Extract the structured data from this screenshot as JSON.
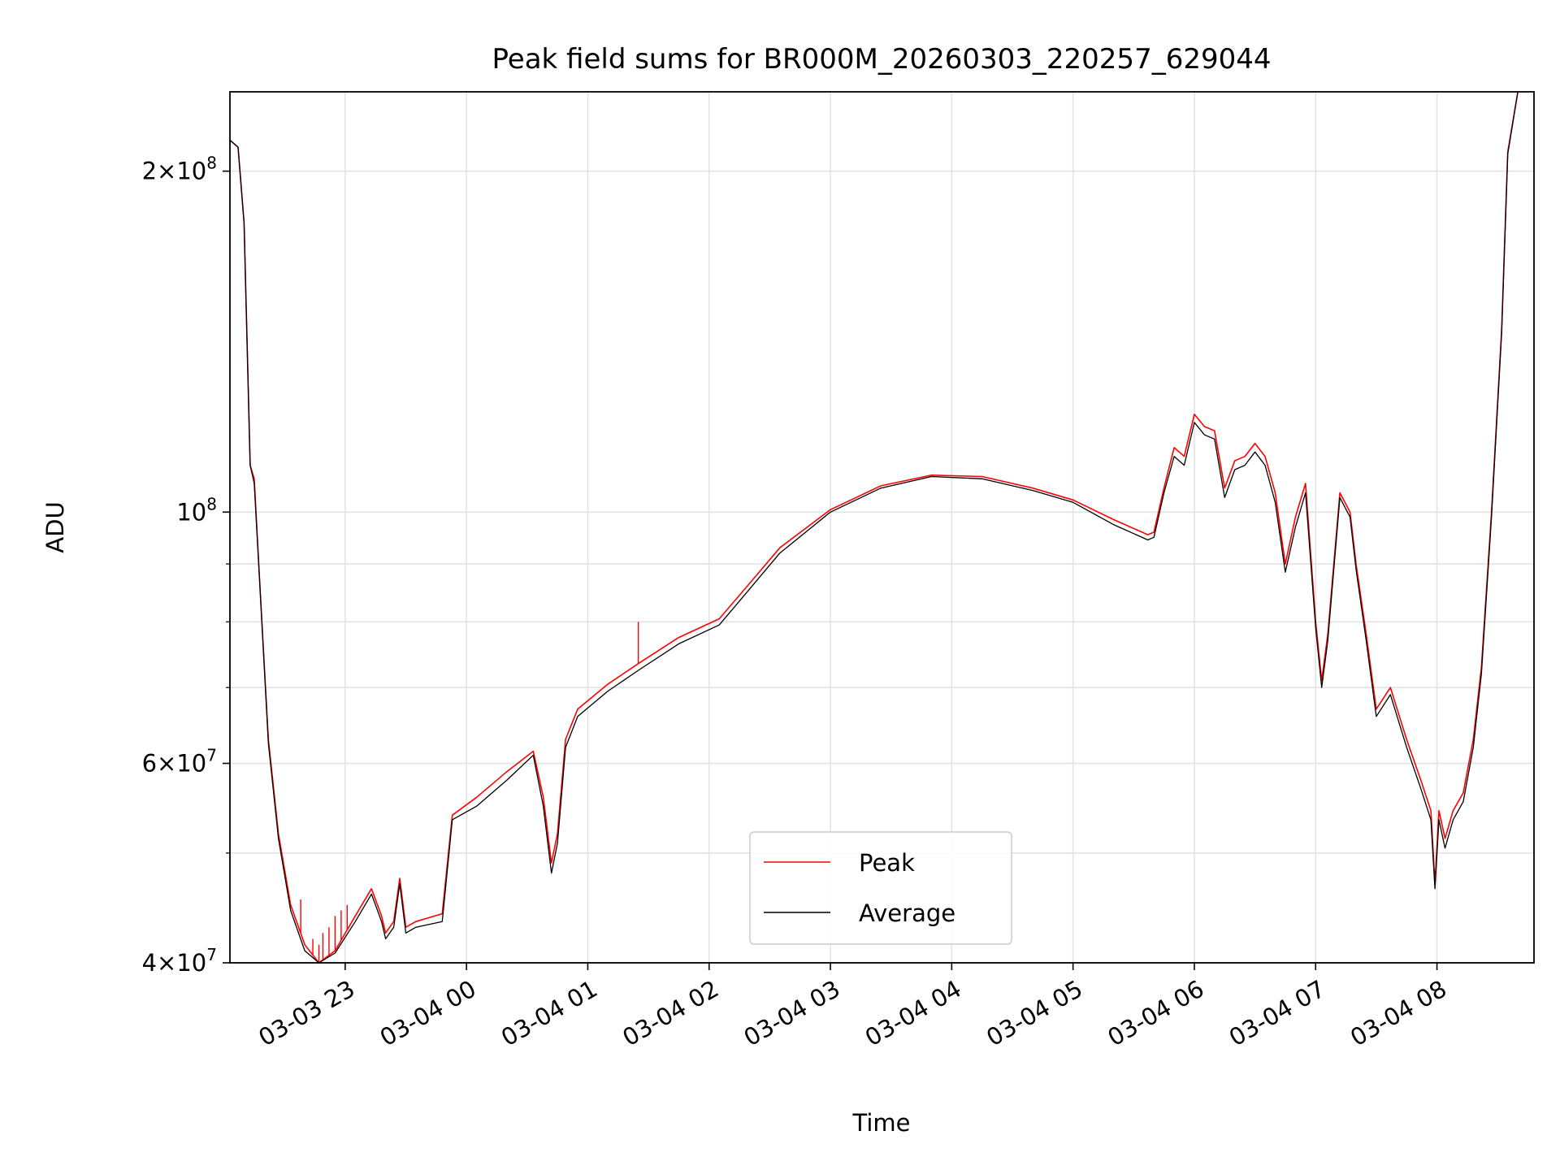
{
  "chart_data": {
    "type": "line",
    "title": "Peak field sums for BR000M_20260303_220257_629044",
    "xlabel": "Time",
    "ylabel": "ADU",
    "yscale": "log",
    "ylim": [
      40000000,
      235000000
    ],
    "xlim": [
      "2026-03-03 22:03",
      "2026-03-04 08:48"
    ],
    "grid": true,
    "legend_position": "bottom-center",
    "x_ticks": [
      {
        "t": "2026-03-03 23:00",
        "label": "03-03 23"
      },
      {
        "t": "2026-03-04 00:00",
        "label": "03-04 00"
      },
      {
        "t": "2026-03-04 01:00",
        "label": "03-04 01"
      },
      {
        "t": "2026-03-04 02:00",
        "label": "03-04 02"
      },
      {
        "t": "2026-03-04 03:00",
        "label": "03-04 03"
      },
      {
        "t": "2026-03-04 04:00",
        "label": "03-04 04"
      },
      {
        "t": "2026-03-04 05:00",
        "label": "03-04 05"
      },
      {
        "t": "2026-03-04 06:00",
        "label": "03-04 06"
      },
      {
        "t": "2026-03-04 07:00",
        "label": "03-04 07"
      },
      {
        "t": "2026-03-04 08:00",
        "label": "03-04 08"
      }
    ],
    "y_ticks": [
      {
        "value": 40000000,
        "mantissa": "4",
        "base": "10",
        "exp": "7"
      },
      {
        "value": 60000000,
        "mantissa": "6",
        "base": "10",
        "exp": "7"
      },
      {
        "value": 100000000,
        "mantissa": "",
        "base": "10",
        "exp": "8"
      },
      {
        "value": 200000000,
        "mantissa": "2",
        "base": "10",
        "exp": "8"
      }
    ],
    "y_minor_grid": [
      50000000,
      70000000,
      80000000,
      90000000
    ],
    "series": [
      {
        "name": "Peak",
        "color": "#ff0000",
        "points": [
          [
            "2026-03-03 22:03",
            213000000.0
          ],
          [
            "2026-03-03 22:07",
            210000000.0
          ],
          [
            "2026-03-03 22:10",
            180000000.0
          ],
          [
            "2026-03-03 22:13",
            110000000.0
          ],
          [
            "2026-03-03 22:15",
            107000000.0
          ],
          [
            "2026-03-03 22:18",
            85000000.0
          ],
          [
            "2026-03-03 22:22",
            63000000.0
          ],
          [
            "2026-03-03 22:27",
            52000000.0
          ],
          [
            "2026-03-03 22:33",
            45000000.0
          ],
          [
            "2026-03-03 22:40",
            41500000.0
          ],
          [
            "2026-03-03 22:47",
            40000000.0
          ],
          [
            "2026-03-03 22:55",
            41000000.0
          ],
          [
            "2026-03-03 23:05",
            44000000.0
          ],
          [
            "2026-03-03 23:13",
            46500000.0
          ],
          [
            "2026-03-03 23:18",
            44000000.0
          ],
          [
            "2026-03-03 23:20",
            42500000.0
          ],
          [
            "2026-03-03 23:24",
            43500000.0
          ],
          [
            "2026-03-03 23:27",
            47500000.0
          ],
          [
            "2026-03-03 23:30",
            43000000.0
          ],
          [
            "2026-03-03 23:35",
            43500000.0
          ],
          [
            "2026-03-03 23:48",
            44200000.0
          ],
          [
            "2026-03-03 23:53",
            54000000.0
          ],
          [
            "2026-03-04 00:05",
            56000000.0
          ],
          [
            "2026-03-04 00:20",
            59000000.0
          ],
          [
            "2026-03-04 00:33",
            61500000.0
          ],
          [
            "2026-03-04 00:38",
            56000000.0
          ],
          [
            "2026-03-04 00:42",
            49000000.0
          ],
          [
            "2026-03-04 00:45",
            52000000.0
          ],
          [
            "2026-03-04 00:49",
            63000000.0
          ],
          [
            "2026-03-04 00:55",
            67000000.0
          ],
          [
            "2026-03-04 01:10",
            70500000.0
          ],
          [
            "2026-03-04 01:25",
            73500000.0
          ],
          [
            "2026-03-04 01:45",
            77500000.0
          ],
          [
            "2026-03-04 02:05",
            80500000.0
          ],
          [
            "2026-03-04 02:20",
            86500000.0
          ],
          [
            "2026-03-04 02:35",
            93000000.0
          ],
          [
            "2026-03-04 03:00",
            100500000.0
          ],
          [
            "2026-03-04 03:25",
            105500000.0
          ],
          [
            "2026-03-04 03:50",
            107800000.0
          ],
          [
            "2026-03-04 04:15",
            107500000.0
          ],
          [
            "2026-03-04 04:40",
            105000000.0
          ],
          [
            "2026-03-04 05:00",
            102500000.0
          ],
          [
            "2026-03-04 05:20",
            98500000.0
          ],
          [
            "2026-03-04 05:37",
            95500000.0
          ],
          [
            "2026-03-04 05:40",
            96000000.0
          ],
          [
            "2026-03-04 05:45",
            105000000.0
          ],
          [
            "2026-03-04 05:50",
            114000000.0
          ],
          [
            "2026-03-04 05:55",
            112000000.0
          ],
          [
            "2026-03-04 06:00",
            122000000.0
          ],
          [
            "2026-03-04 06:05",
            119000000.0
          ],
          [
            "2026-03-04 06:10",
            118000000.0
          ],
          [
            "2026-03-04 06:15",
            105000000.0
          ],
          [
            "2026-03-04 06:20",
            111000000.0
          ],
          [
            "2026-03-04 06:25",
            112000000.0
          ],
          [
            "2026-03-04 06:30",
            115000000.0
          ],
          [
            "2026-03-04 06:35",
            112000000.0
          ],
          [
            "2026-03-04 06:40",
            104000000.0
          ],
          [
            "2026-03-04 06:45",
            90000000.0
          ],
          [
            "2026-03-04 06:50",
            99000000.0
          ],
          [
            "2026-03-04 06:55",
            106000000.0
          ],
          [
            "2026-03-04 07:00",
            80000000.0
          ],
          [
            "2026-03-04 07:03",
            71000000.0
          ],
          [
            "2026-03-04 07:06",
            78000000.0
          ],
          [
            "2026-03-04 07:12",
            104000000.0
          ],
          [
            "2026-03-04 07:17",
            100000000.0
          ],
          [
            "2026-03-04 07:20",
            90000000.0
          ],
          [
            "2026-03-04 07:25",
            78000000.0
          ],
          [
            "2026-03-04 07:30",
            67000000.0
          ],
          [
            "2026-03-04 07:37",
            70000000.0
          ],
          [
            "2026-03-04 07:45",
            63000000.0
          ],
          [
            "2026-03-04 07:52",
            58000000.0
          ],
          [
            "2026-03-04 07:57",
            54500000.0
          ],
          [
            "2026-03-04 07:59",
            47000000.0
          ],
          [
            "2026-03-04 08:01",
            54500000.0
          ],
          [
            "2026-03-04 08:04",
            51500000.0
          ],
          [
            "2026-03-04 08:08",
            54500000.0
          ],
          [
            "2026-03-04 08:13",
            56500000.0
          ],
          [
            "2026-03-04 08:18",
            63000000.0
          ],
          [
            "2026-03-04 08:22",
            73000000.0
          ],
          [
            "2026-03-04 08:27",
            100000000.0
          ],
          [
            "2026-03-04 08:32",
            145000000.0
          ],
          [
            "2026-03-04 08:35",
            208000000.0
          ],
          [
            "2026-03-04 08:40",
            235000000.0
          ]
        ],
        "spikes": [
          [
            "2026-03-03 22:38",
            45500000.0
          ],
          [
            "2026-03-03 22:44",
            42000000.0
          ],
          [
            "2026-03-03 22:47",
            41500000.0
          ],
          [
            "2026-03-03 22:49",
            42500000.0
          ],
          [
            "2026-03-03 22:52",
            43000000.0
          ],
          [
            "2026-03-03 22:55",
            44000000.0
          ],
          [
            "2026-03-03 22:58",
            44500000.0
          ],
          [
            "2026-03-03 23:01",
            45000000.0
          ],
          [
            "2026-03-04 01:25",
            80000000.0
          ]
        ]
      },
      {
        "name": "Average",
        "color": "#000000",
        "points": [
          [
            "2026-03-03 22:03",
            213000000.0
          ],
          [
            "2026-03-03 22:07",
            210000000.0
          ],
          [
            "2026-03-03 22:10",
            180000000.0
          ],
          [
            "2026-03-03 22:13",
            110000000.0
          ],
          [
            "2026-03-03 22:15",
            106000000.0
          ],
          [
            "2026-03-03 22:18",
            85000000.0
          ],
          [
            "2026-03-03 22:22",
            62500000.0
          ],
          [
            "2026-03-03 22:27",
            51500000.0
          ],
          [
            "2026-03-03 22:33",
            44500000.0
          ],
          [
            "2026-03-03 22:40",
            41000000.0
          ],
          [
            "2026-03-03 22:47",
            40000000.0
          ],
          [
            "2026-03-03 22:55",
            40800000.0
          ],
          [
            "2026-03-03 23:05",
            43500000.0
          ],
          [
            "2026-03-03 23:13",
            46000000.0
          ],
          [
            "2026-03-03 23:18",
            43500000.0
          ],
          [
            "2026-03-03 23:20",
            42000000.0
          ],
          [
            "2026-03-03 23:24",
            43000000.0
          ],
          [
            "2026-03-03 23:27",
            47000000.0
          ],
          [
            "2026-03-03 23:30",
            42500000.0
          ],
          [
            "2026-03-03 23:35",
            43000000.0
          ],
          [
            "2026-03-03 23:48",
            43500000.0
          ],
          [
            "2026-03-03 23:53",
            53500000.0
          ],
          [
            "2026-03-04 00:05",
            55000000.0
          ],
          [
            "2026-03-04 00:20",
            58000000.0
          ],
          [
            "2026-03-04 00:33",
            61000000.0
          ],
          [
            "2026-03-04 00:38",
            55000000.0
          ],
          [
            "2026-03-04 00:42",
            48000000.0
          ],
          [
            "2026-03-04 00:45",
            51000000.0
          ],
          [
            "2026-03-04 00:49",
            62000000.0
          ],
          [
            "2026-03-04 00:55",
            66000000.0
          ],
          [
            "2026-03-04 01:10",
            69500000.0
          ],
          [
            "2026-03-04 01:25",
            72500000.0
          ],
          [
            "2026-03-04 01:45",
            76500000.0
          ],
          [
            "2026-03-04 02:05",
            79500000.0
          ],
          [
            "2026-03-04 02:20",
            85500000.0
          ],
          [
            "2026-03-04 02:35",
            92000000.0
          ],
          [
            "2026-03-04 03:00",
            100000000.0
          ],
          [
            "2026-03-04 03:25",
            105000000.0
          ],
          [
            "2026-03-04 03:50",
            107500000.0
          ],
          [
            "2026-03-04 04:15",
            107000000.0
          ],
          [
            "2026-03-04 04:40",
            104500000.0
          ],
          [
            "2026-03-04 05:00",
            102000000.0
          ],
          [
            "2026-03-04 05:20",
            97500000.0
          ],
          [
            "2026-03-04 05:37",
            94500000.0
          ],
          [
            "2026-03-04 05:40",
            95000000.0
          ],
          [
            "2026-03-04 05:45",
            104000000.0
          ],
          [
            "2026-03-04 05:50",
            112000000.0
          ],
          [
            "2026-03-04 05:55",
            110000000.0
          ],
          [
            "2026-03-04 06:00",
            120000000.0
          ],
          [
            "2026-03-04 06:05",
            117000000.0
          ],
          [
            "2026-03-04 06:10",
            116000000.0
          ],
          [
            "2026-03-04 06:15",
            103000000.0
          ],
          [
            "2026-03-04 06:20",
            109000000.0
          ],
          [
            "2026-03-04 06:25",
            110000000.0
          ],
          [
            "2026-03-04 06:30",
            113000000.0
          ],
          [
            "2026-03-04 06:35",
            110000000.0
          ],
          [
            "2026-03-04 06:40",
            102000000.0
          ],
          [
            "2026-03-04 06:45",
            88500000.0
          ],
          [
            "2026-03-04 06:50",
            97000000.0
          ],
          [
            "2026-03-04 06:55",
            104000000.0
          ],
          [
            "2026-03-04 07:00",
            79000000.0
          ],
          [
            "2026-03-04 07:03",
            70000000.0
          ],
          [
            "2026-03-04 07:06",
            77000000.0
          ],
          [
            "2026-03-04 07:12",
            103000000.0
          ],
          [
            "2026-03-04 07:17",
            99000000.0
          ],
          [
            "2026-03-04 07:20",
            89000000.0
          ],
          [
            "2026-03-04 07:25",
            77000000.0
          ],
          [
            "2026-03-04 07:30",
            66000000.0
          ],
          [
            "2026-03-04 07:37",
            69000000.0
          ],
          [
            "2026-03-04 07:45",
            62000000.0
          ],
          [
            "2026-03-04 07:52",
            57000000.0
          ],
          [
            "2026-03-04 07:57",
            53500000.0
          ],
          [
            "2026-03-04 07:59",
            46500000.0
          ],
          [
            "2026-03-04 08:01",
            53500000.0
          ],
          [
            "2026-03-04 08:04",
            50500000.0
          ],
          [
            "2026-03-04 08:08",
            53500000.0
          ],
          [
            "2026-03-04 08:13",
            55500000.0
          ],
          [
            "2026-03-04 08:18",
            62000000.0
          ],
          [
            "2026-03-04 08:22",
            72000000.0
          ],
          [
            "2026-03-04 08:27",
            99000000.0
          ],
          [
            "2026-03-04 08:32",
            144000000.0
          ],
          [
            "2026-03-04 08:35",
            207000000.0
          ],
          [
            "2026-03-04 08:40",
            235000000.0
          ]
        ]
      }
    ]
  }
}
